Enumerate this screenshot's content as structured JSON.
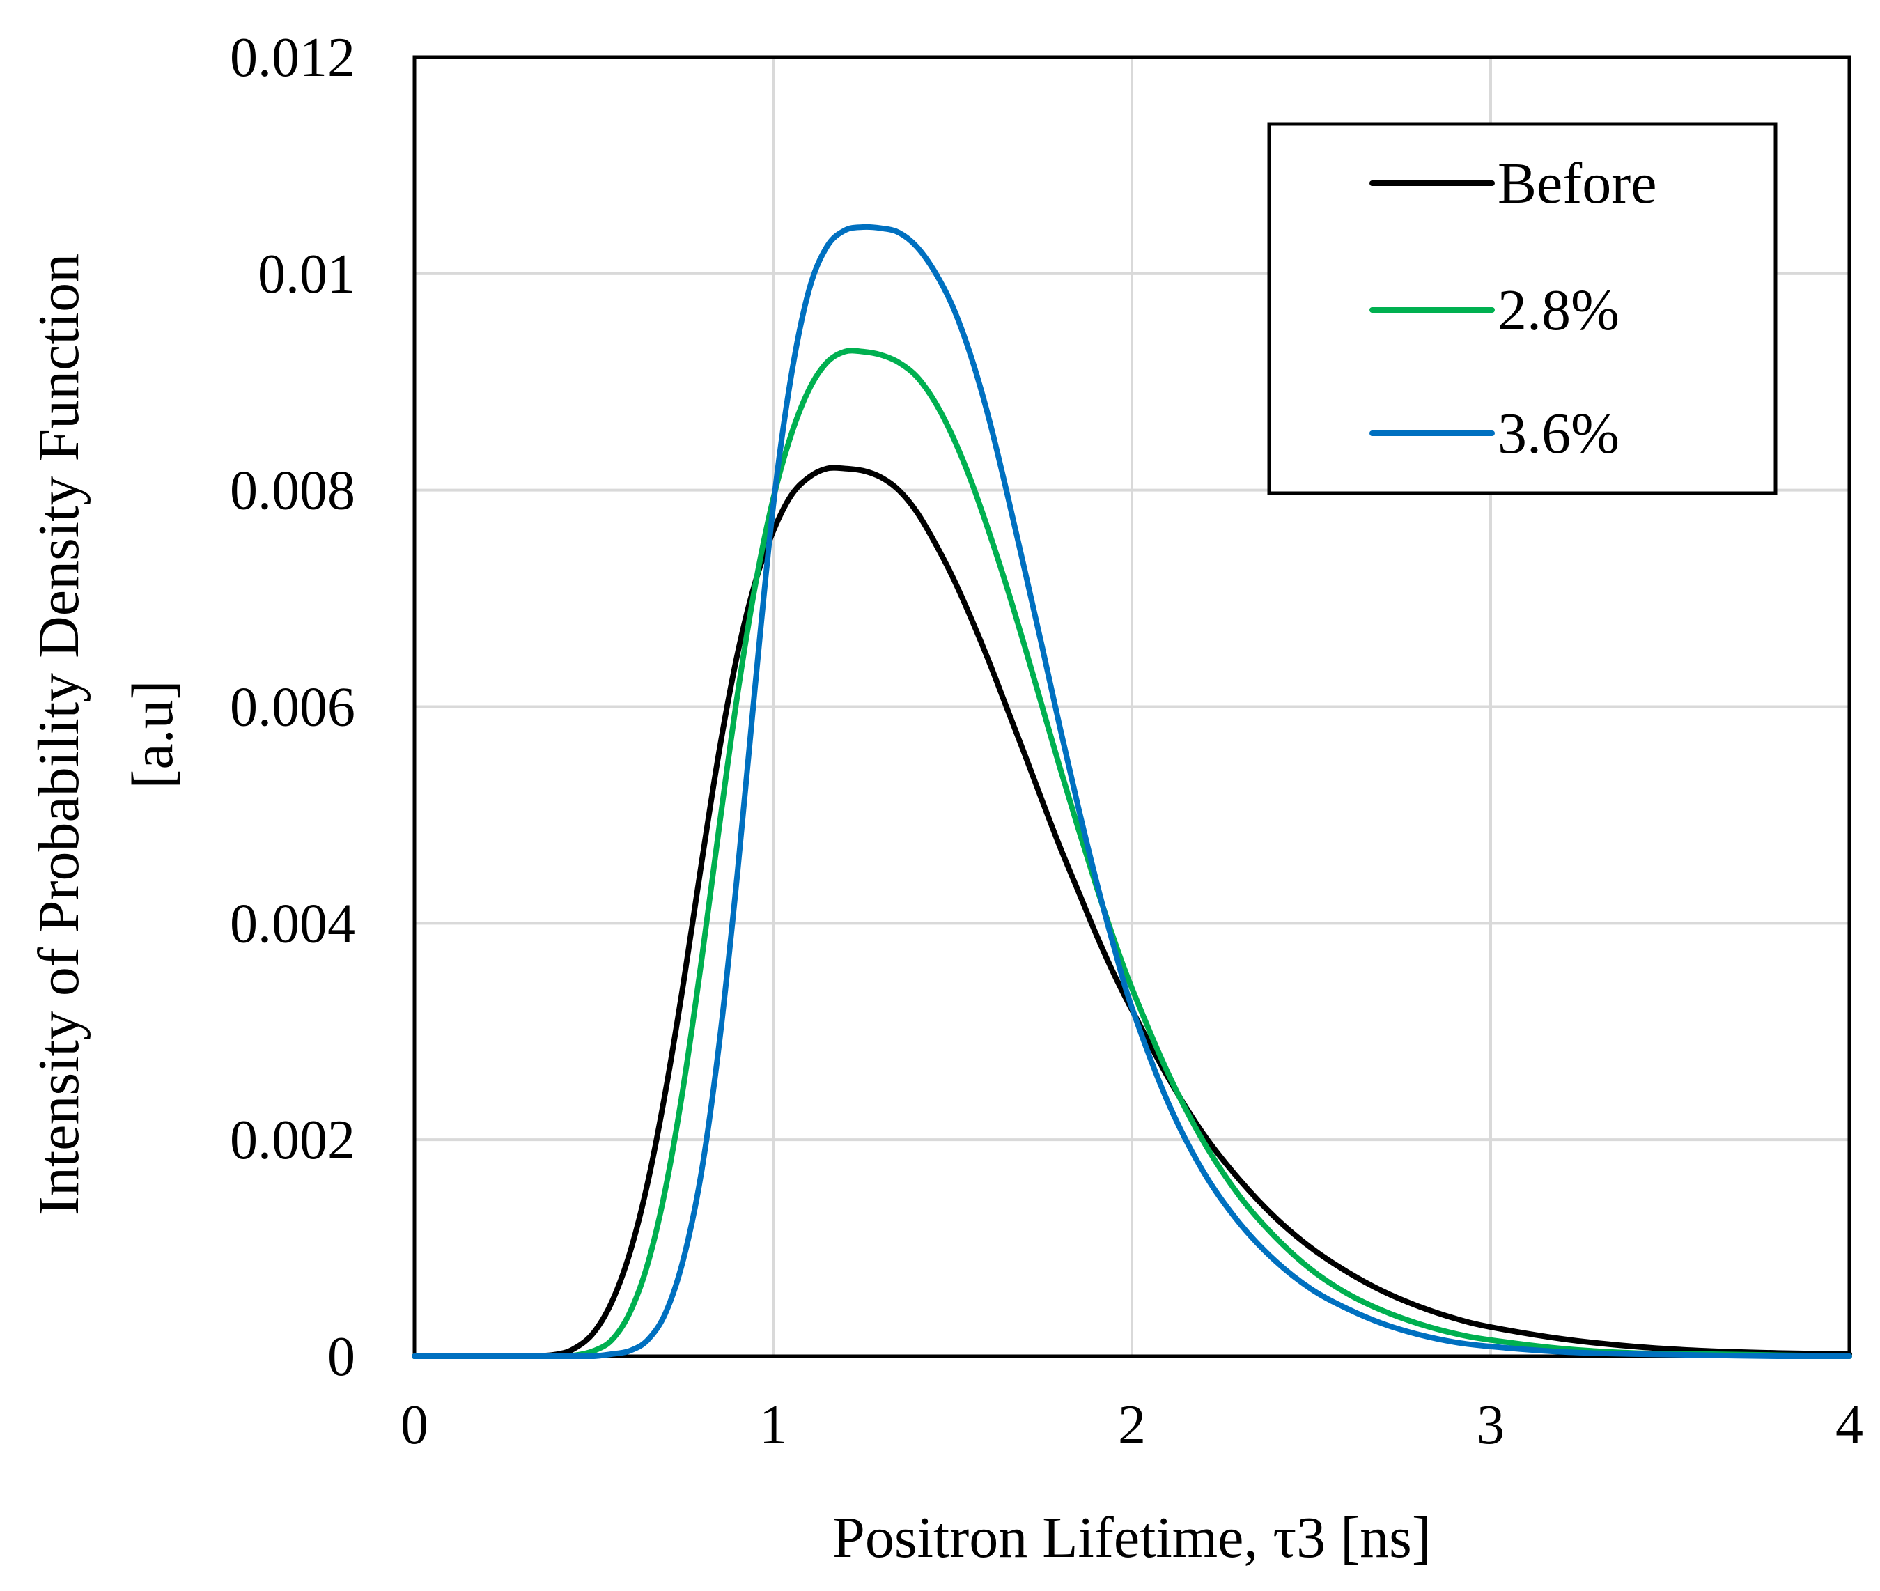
{
  "chart_data": {
    "type": "line",
    "title": "",
    "xlabel": "Positron Lifetime, τ3 [ns]",
    "ylabel": [
      "Intensity of  Probability Density Function",
      "[a.u]"
    ],
    "xlim": [
      0,
      4
    ],
    "ylim": [
      0,
      0.012
    ],
    "x_ticks": [
      0,
      1,
      2,
      3,
      4
    ],
    "x_tick_labels": [
      "0",
      "1",
      "2",
      "3",
      "4"
    ],
    "y_ticks": [
      0,
      0.002,
      0.004,
      0.006,
      0.008,
      0.01,
      0.012
    ],
    "y_tick_labels": [
      "0",
      "0.002",
      "0.004",
      "0.006",
      "0.008",
      "0.01",
      "0.012"
    ],
    "grid": true,
    "legend_position": "top-right",
    "x": [
      0,
      0.3,
      0.4,
      0.45,
      0.5,
      0.55,
      0.6,
      0.65,
      0.7,
      0.75,
      0.8,
      0.85,
      0.9,
      0.95,
      1.0,
      1.05,
      1.1,
      1.15,
      1.2,
      1.25,
      1.3,
      1.35,
      1.4,
      1.45,
      1.5,
      1.55,
      1.6,
      1.65,
      1.7,
      1.75,
      1.8,
      1.85,
      1.9,
      1.95,
      2.0,
      2.1,
      2.2,
      2.3,
      2.4,
      2.5,
      2.6,
      2.7,
      2.8,
      2.9,
      3.0,
      3.2,
      3.4,
      3.6,
      3.8,
      4.0
    ],
    "series": [
      {
        "name": "Before",
        "color": "#000000",
        "values": [
          0,
          0,
          2e-05,
          8e-05,
          0.00022,
          0.0005,
          0.00095,
          0.0016,
          0.00245,
          0.00345,
          0.00455,
          0.0056,
          0.00648,
          0.00715,
          0.00762,
          0.00795,
          0.00812,
          0.0082,
          0.0082,
          0.00818,
          0.00812,
          0.008,
          0.0078,
          0.00752,
          0.0072,
          0.00683,
          0.00643,
          0.006,
          0.00557,
          0.00513,
          0.0047,
          0.0043,
          0.0039,
          0.00353,
          0.0032,
          0.00258,
          0.00205,
          0.00163,
          0.00128,
          0.001,
          0.00078,
          0.0006,
          0.00046,
          0.00035,
          0.00027,
          0.00016,
          9e-05,
          5e-05,
          3e-05,
          2e-05
        ]
      },
      {
        "name": "2.8%",
        "color": "#00b050",
        "values": [
          0,
          0,
          0,
          1e-05,
          5e-05,
          0.00015,
          0.0004,
          0.00085,
          0.00155,
          0.0025,
          0.00365,
          0.0049,
          0.0061,
          0.00712,
          0.00792,
          0.00851,
          0.00893,
          0.00918,
          0.00928,
          0.00928,
          0.00925,
          0.00918,
          0.00905,
          0.00882,
          0.0085,
          0.0081,
          0.00763,
          0.00712,
          0.00657,
          0.006,
          0.00543,
          0.00488,
          0.00435,
          0.00385,
          0.0034,
          0.00262,
          0.00198,
          0.00148,
          0.0011,
          0.0008,
          0.00058,
          0.00042,
          0.0003,
          0.00021,
          0.00015,
          7e-05,
          3e-05,
          2e-05,
          1e-05,
          0
        ]
      },
      {
        "name": "3.6%",
        "color": "#0070c0",
        "values": [
          0,
          0,
          0,
          0,
          0,
          2e-05,
          5e-05,
          0.00015,
          0.0004,
          0.0009,
          0.0017,
          0.0029,
          0.00445,
          0.0062,
          0.00785,
          0.00905,
          0.00985,
          0.01025,
          0.0104,
          0.01043,
          0.01042,
          0.01038,
          0.01025,
          0.01002,
          0.0097,
          0.00925,
          0.00868,
          0.008,
          0.00728,
          0.00655,
          0.0058,
          0.00508,
          0.0044,
          0.00378,
          0.00322,
          0.00235,
          0.0017,
          0.00123,
          0.00088,
          0.00062,
          0.00044,
          0.0003,
          0.0002,
          0.00013,
          9e-05,
          4e-05,
          2e-05,
          1e-05,
          0,
          0
        ]
      }
    ]
  }
}
